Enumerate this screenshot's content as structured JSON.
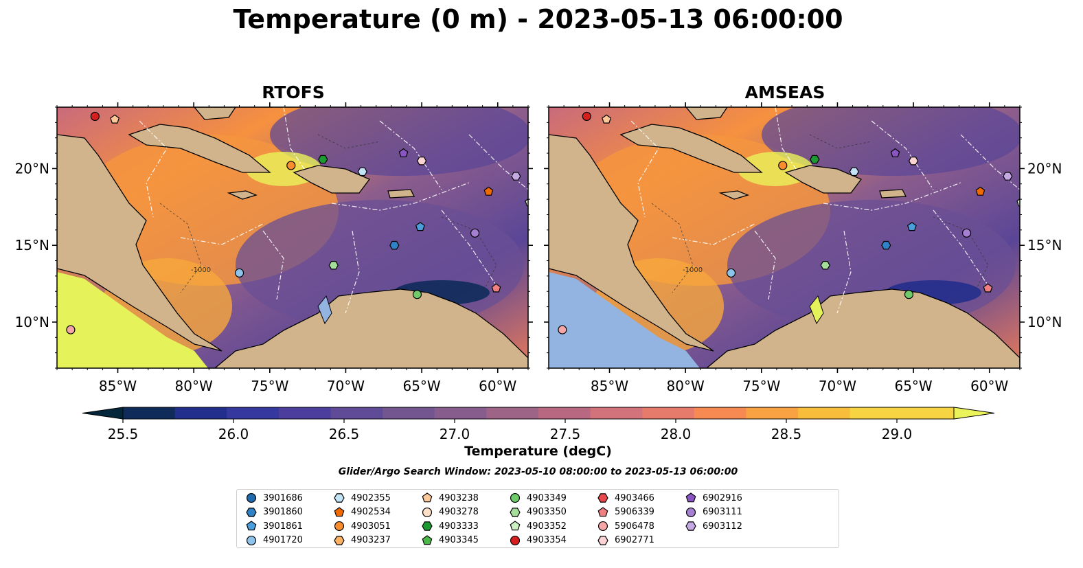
{
  "title": "Temperature (0 m) - 2023-05-13 06:00:00",
  "panels": [
    {
      "name": "RTOFS"
    },
    {
      "name": "AMSEAS"
    }
  ],
  "map": {
    "lon_range": [
      -89,
      -58
    ],
    "lat_range": [
      7,
      24
    ],
    "lon_ticks": [
      "85°W",
      "80°W",
      "75°W",
      "70°W",
      "65°W",
      "60°W"
    ],
    "lon_tick_values": [
      -85,
      -80,
      -75,
      -70,
      -65,
      -60
    ],
    "lat_ticks": [
      "20°N",
      "15°N",
      "10°N"
    ],
    "lat_tick_values": [
      20,
      15,
      10
    ],
    "land_color": "#d2b48c",
    "bathymetry_label": "-1000"
  },
  "colorbar": {
    "label": "Temperature (degC)",
    "ticks": [
      "25.5",
      "26.0",
      "26.5",
      "27.0",
      "27.5",
      "28.0",
      "28.5",
      "29.0"
    ],
    "min": 25.25,
    "max": 29.5,
    "colors": [
      "#03263a",
      "#0f2b5a",
      "#232f8c",
      "#34389f",
      "#4b3e9c",
      "#5f4b97",
      "#735690",
      "#875d8d",
      "#9e6488",
      "#b86881",
      "#d2727a",
      "#e77b6b",
      "#f68a52",
      "#f9a243",
      "#f9bd3c",
      "#f7d542",
      "#eaf35a"
    ]
  },
  "search_window": "Glider/Argo Search Window: 2023-05-10 08:00:00 to 2023-05-13 06:00:00",
  "legend": [
    {
      "id": "3901686",
      "marker": "circle",
      "color": "#1f6bad"
    },
    {
      "id": "3901860",
      "marker": "hexagon",
      "color": "#2f82c6"
    },
    {
      "id": "3901861",
      "marker": "pentagon",
      "color": "#4a9edb"
    },
    {
      "id": "4901720",
      "marker": "circle",
      "color": "#8ec3ec"
    },
    {
      "id": "4902355",
      "marker": "hexagon",
      "color": "#c3e3f6"
    },
    {
      "id": "4902534",
      "marker": "pentagon",
      "color": "#f06a00"
    },
    {
      "id": "4903051",
      "marker": "circle",
      "color": "#fa8d2e"
    },
    {
      "id": "4903237",
      "marker": "hexagon",
      "color": "#fdb163"
    },
    {
      "id": "4903238",
      "marker": "pentagon",
      "color": "#fdc89a"
    },
    {
      "id": "4903278",
      "marker": "circle",
      "color": "#fde0c5"
    },
    {
      "id": "4903333",
      "marker": "hexagon",
      "color": "#1a9a30"
    },
    {
      "id": "4903345",
      "marker": "pentagon",
      "color": "#4cb84a"
    },
    {
      "id": "4903349",
      "marker": "circle",
      "color": "#6fcb6a"
    },
    {
      "id": "4903350",
      "marker": "hexagon",
      "color": "#a5de9a"
    },
    {
      "id": "4903352",
      "marker": "pentagon",
      "color": "#cdf0c3"
    },
    {
      "id": "4903354",
      "marker": "circle",
      "color": "#d62020"
    },
    {
      "id": "4903466",
      "marker": "hexagon",
      "color": "#e8474c"
    },
    {
      "id": "5906339",
      "marker": "pentagon",
      "color": "#f07f82"
    },
    {
      "id": "5906478",
      "marker": "circle",
      "color": "#f5a6a6"
    },
    {
      "id": "6902771",
      "marker": "hexagon",
      "color": "#fbd3d2"
    },
    {
      "id": "6902916",
      "marker": "pentagon",
      "color": "#8a55c2"
    },
    {
      "id": "6903111",
      "marker": "circle",
      "color": "#a57fd2"
    },
    {
      "id": "6903112",
      "marker": "hexagon",
      "color": "#c4a9e2"
    }
  ],
  "observations": [
    {
      "id": "4903354",
      "lon": -86.5,
      "lat": 23.4
    },
    {
      "id": "4903238",
      "lon": -85.2,
      "lat": 23.2
    },
    {
      "id": "4903051",
      "lon": -73.6,
      "lat": 20.2
    },
    {
      "id": "4903333",
      "lon": -71.5,
      "lat": 20.6
    },
    {
      "id": "4902355",
      "lon": -68.9,
      "lat": 19.8
    },
    {
      "id": "6902916",
      "lon": -66.2,
      "lat": 21.0
    },
    {
      "id": "6902771",
      "lon": -65.0,
      "lat": 20.5
    },
    {
      "id": "6903112",
      "lon": -58.8,
      "lat": 19.5
    },
    {
      "id": "4902534",
      "lon": -60.6,
      "lat": 18.5
    },
    {
      "id": "4903352",
      "lon": -57.9,
      "lat": 17.8
    },
    {
      "id": "3901861",
      "lon": -65.1,
      "lat": 16.2
    },
    {
      "id": "3901860",
      "lon": -66.8,
      "lat": 15.0
    },
    {
      "id": "6903111",
      "lon": -61.5,
      "lat": 15.8
    },
    {
      "id": "4903350",
      "lon": -70.8,
      "lat": 13.7
    },
    {
      "id": "4901720",
      "lon": -77.0,
      "lat": 13.2
    },
    {
      "id": "4903349",
      "lon": -65.3,
      "lat": 11.8
    },
    {
      "id": "5906339",
      "lon": -60.1,
      "lat": 12.2
    },
    {
      "id": "5906478",
      "lon": -88.1,
      "lat": 9.5
    }
  ]
}
